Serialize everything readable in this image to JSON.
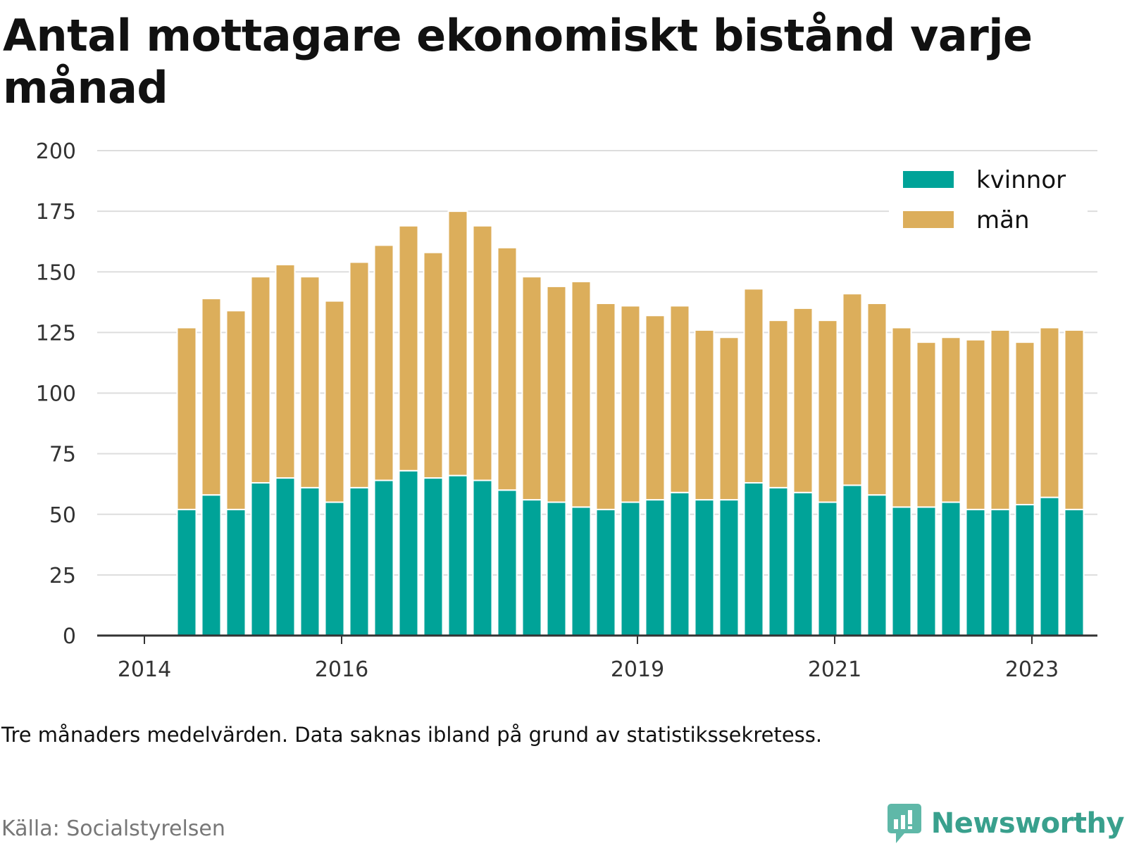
{
  "title": "Antal mottagare ekonomiskt bistånd varje månad",
  "note": "Tre månaders medelvärden. Data saknas ibland på grund av statistikssekretess.",
  "source": "Källa: Socialstyrelsen",
  "brand": {
    "name": "Newsworthy",
    "icon": "newsworthy-chart-logo-icon",
    "color": "#39a08d"
  },
  "colors": {
    "kvinnor": "#00a398",
    "man": "#dcae5b",
    "grid": "#dddddd",
    "axis": "#333333"
  },
  "chart_data": {
    "type": "bar",
    "stacked": true,
    "title": "Antal mottagare ekonomiskt bistånd varje månad",
    "xlabel": "",
    "ylabel": "",
    "ylim": [
      0,
      200
    ],
    "yticks": [
      0,
      25,
      50,
      75,
      100,
      125,
      150,
      175,
      200
    ],
    "xticks": [
      {
        "label": "2014",
        "x": "2014-01"
      },
      {
        "label": "2016",
        "x": "2016-01"
      },
      {
        "label": "2019",
        "x": "2019-01"
      },
      {
        "label": "2021",
        "x": "2021-01"
      },
      {
        "label": "2023",
        "x": "2023-01"
      }
    ],
    "grid": true,
    "legend_position": "top-right",
    "x": [
      "2014-04",
      "2014-07",
      "2014-10",
      "2015-01",
      "2015-04",
      "2015-07",
      "2015-10",
      "2016-01",
      "2016-04",
      "2016-07",
      "2016-10",
      "2017-01",
      "2017-04",
      "2017-07",
      "2017-10",
      "2018-01",
      "2018-04",
      "2018-07",
      "2018-10",
      "2019-01",
      "2019-04",
      "2019-07",
      "2019-10",
      "2020-01",
      "2020-04",
      "2020-07",
      "2020-10",
      "2021-01",
      "2021-04",
      "2021-07",
      "2021-10",
      "2022-01",
      "2022-04",
      "2022-07",
      "2022-10",
      "2023-01",
      "2023-04"
    ],
    "series": [
      {
        "name": "kvinnor",
        "values": [
          52,
          58,
          52,
          63,
          65,
          61,
          55,
          61,
          64,
          68,
          65,
          66,
          64,
          60,
          56,
          55,
          53,
          52,
          55,
          56,
          59,
          56,
          56,
          63,
          61,
          59,
          55,
          62,
          58,
          53,
          53,
          55,
          52,
          52,
          54,
          57,
          52
        ]
      },
      {
        "name": "män",
        "values": [
          75,
          81,
          82,
          85,
          88,
          87,
          83,
          93,
          97,
          101,
          93,
          109,
          105,
          100,
          92,
          89,
          93,
          85,
          81,
          76,
          77,
          70,
          67,
          80,
          69,
          76,
          75,
          79,
          79,
          74,
          68,
          68,
          70,
          74,
          67,
          70,
          74
        ]
      }
    ]
  }
}
